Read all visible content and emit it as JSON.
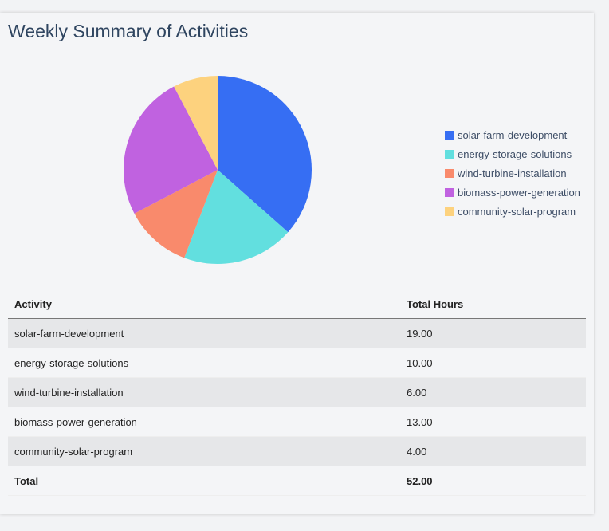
{
  "title": "Weekly Summary of Activities",
  "chart_data": {
    "type": "pie",
    "categories": [
      "solar-farm-development",
      "energy-storage-solutions",
      "wind-turbine-installation",
      "biomass-power-generation",
      "community-solar-program"
    ],
    "values": [
      19,
      10,
      6,
      13,
      4
    ],
    "colors": [
      "#366ef3",
      "#62dfdf",
      "#f98a6c",
      "#c062e0",
      "#fdd27e"
    ],
    "legend_position": "right"
  },
  "table": {
    "headers": [
      "Activity",
      "Total Hours"
    ],
    "rows": [
      [
        "solar-farm-development",
        "19.00"
      ],
      [
        "energy-storage-solutions",
        "10.00"
      ],
      [
        "wind-turbine-installation",
        "6.00"
      ],
      [
        "biomass-power-generation",
        "13.00"
      ],
      [
        "community-solar-program",
        "4.00"
      ]
    ],
    "total": [
      "Total",
      "52.00"
    ]
  }
}
